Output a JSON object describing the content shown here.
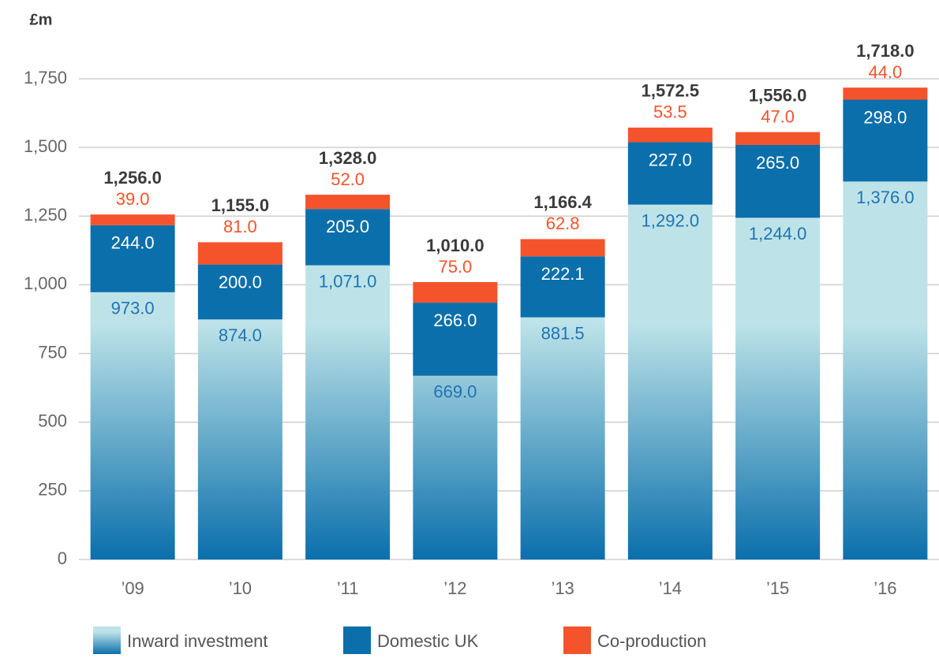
{
  "chart_data": {
    "type": "stacked_bar",
    "y_label": "£m",
    "categories": [
      "’09",
      "’10",
      "’11",
      "’12",
      "’13",
      "’14",
      "’15",
      "’16"
    ],
    "series": [
      {
        "name": "Inward investment",
        "color": "#bde3e8",
        "gradient_to": "#0b6fab",
        "values": [
          973,
          874,
          1071,
          669,
          881.5,
          1292,
          1244,
          1376
        ],
        "value_labels": [
          "973.0",
          "874.0",
          "1,071.0",
          "669.0",
          "881.5",
          "1,292.0",
          "1,244.0",
          "1,376.0"
        ]
      },
      {
        "name": "Domestic UK",
        "color": "#0b6fab",
        "values": [
          244,
          200,
          205,
          266,
          222.1,
          227,
          265,
          298
        ],
        "value_labels": [
          "244.0",
          "200.0",
          "205.0",
          "266.0",
          "222.1",
          "227.0",
          "265.0",
          "298.0"
        ]
      },
      {
        "name": "Co-production",
        "color": "#f4532c",
        "values": [
          39,
          81,
          52,
          75,
          62.8,
          53.5,
          47,
          44
        ],
        "value_labels": [
          "39.0",
          "81.0",
          "52.0",
          "75.0",
          "62.8",
          "53.5",
          "47.0",
          "44.0"
        ]
      }
    ],
    "totals": [
      1256,
      1155,
      1328,
      1010,
      1166.4,
      1572.5,
      1556,
      1718
    ],
    "total_labels": [
      "1,256.0",
      "1,155.0",
      "1,328.0",
      "1,010.0",
      "1,166.4",
      "1,572.5",
      "1,556.0",
      "1,718.0"
    ],
    "ylim": [
      0,
      1750
    ],
    "yticks": [
      0,
      250,
      500,
      750,
      {
        "value": 1000,
        "label": "1,000"
      },
      {
        "value": 1250,
        "label": "1,250"
      },
      {
        "value": 1500,
        "label": "1,500"
      },
      {
        "value": 1750,
        "label": "1,750"
      }
    ],
    "grid": true
  }
}
